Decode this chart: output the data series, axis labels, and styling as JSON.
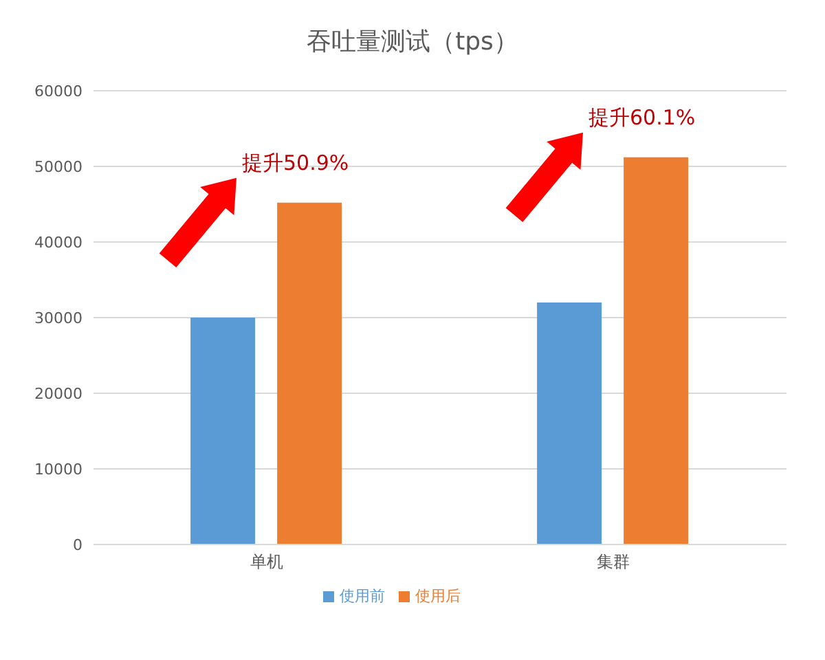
{
  "chart_data": {
    "type": "bar",
    "title": "吞吐量测试（tps）",
    "categories": [
      "单机",
      "集群"
    ],
    "series": [
      {
        "name": "使用前",
        "color": "#5b9bd5",
        "values": [
          30000,
          32000
        ]
      },
      {
        "name": "使用后",
        "color": "#ed7d31",
        "values": [
          45200,
          51200
        ]
      }
    ],
    "ylim": [
      0,
      60000
    ],
    "yticks": [
      0,
      10000,
      20000,
      30000,
      40000,
      50000,
      60000
    ],
    "grid": "y",
    "legend": "bottom",
    "annotations": [
      "提升50.9%",
      "提升60.1%"
    ]
  }
}
